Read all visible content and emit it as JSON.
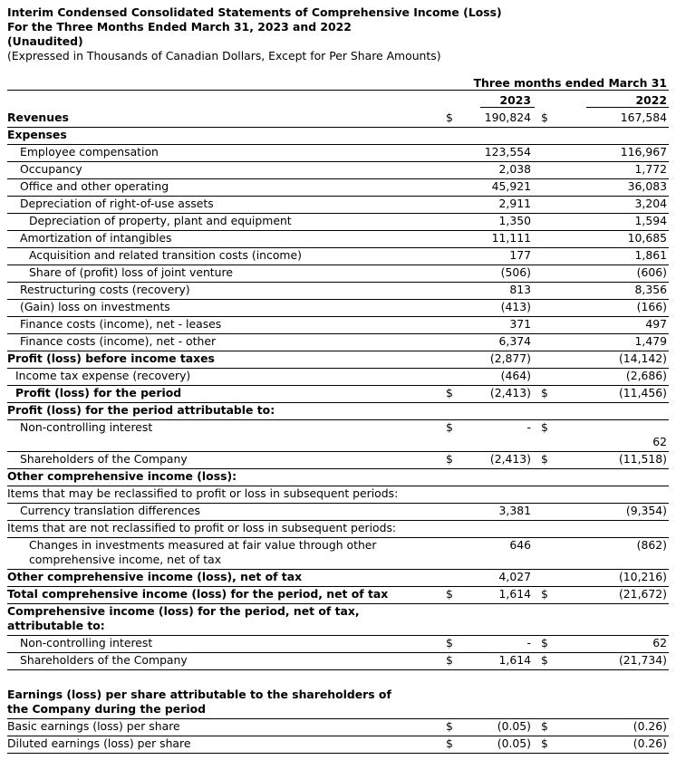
{
  "title": {
    "line1": "Interim Condensed Consolidated Statements of Comprehensive Income (Loss)",
    "line2": "For the Three Months Ended March 31, 2023 and 2022",
    "line3": "(Unaudited)",
    "line4": "(Expressed in Thousands of Canadian Dollars, Except for Per Share Amounts)"
  },
  "column_header": {
    "period": "Three months ended March 31",
    "year1": "2023",
    "year2": "2022"
  },
  "rows": [
    {
      "label": "Revenues",
      "bold": true,
      "indent": 0,
      "c1": "$",
      "v1": "190,824",
      "c2": "$",
      "v2": "167,584"
    },
    {
      "label": "Expenses",
      "bold": true,
      "indent": 0
    },
    {
      "label": "Employee compensation",
      "indent": 1,
      "v1": "123,554",
      "v2": "116,967"
    },
    {
      "label": "Occupancy",
      "indent": 1,
      "v1": "2,038",
      "v2": "1,772"
    },
    {
      "label": "Office and other operating",
      "indent": 1,
      "v1": "45,921",
      "v2": "36,083"
    },
    {
      "label": "Depreciation of right-of-use assets",
      "indent": 1,
      "v1": "2,911",
      "v2": "3,204"
    },
    {
      "label": "Depreciation of property, plant and equipment",
      "indent": 2,
      "v1": "1,350",
      "v2": "1,594"
    },
    {
      "label": "Amortization of intangibles",
      "indent": 1,
      "v1": "11,111",
      "v2": "10,685"
    },
    {
      "label": "Acquisition and related transition costs (income)",
      "indent": 2,
      "v1": "177",
      "v2": "1,861"
    },
    {
      "label": "Share of (profit) loss of joint venture",
      "indent": 2,
      "v1": "(506)",
      "v2": "(606)"
    },
    {
      "label": "Restructuring costs (recovery)",
      "indent": 1,
      "v1": "813",
      "v2": "8,356"
    },
    {
      "label": "(Gain) loss on investments",
      "indent": 1,
      "v1": "(413)",
      "v2": "(166)"
    },
    {
      "label": "Finance costs (income), net - leases",
      "indent": 1,
      "v1": "371",
      "v2": "497"
    },
    {
      "label": "Finance costs (income), net - other",
      "indent": 1,
      "v1": "6,374",
      "v2": "1,479"
    },
    {
      "label": "Profit (loss) before income taxes",
      "bold": true,
      "indent": 0,
      "v1": "(2,877)",
      "v2": "(14,142)"
    },
    {
      "label": "Income tax expense (recovery)",
      "indent": 3,
      "v1": "(464)",
      "v2": "(2,686)"
    },
    {
      "label": "Profit (loss) for the period",
      "bold": true,
      "indent": 3,
      "c1": "$",
      "v1": "(2,413)",
      "c2": "$",
      "v2": "(11,456)"
    },
    {
      "label": "Profit (loss) for the period attributable to:",
      "bold": true,
      "indent": 0
    },
    {
      "label": "Non-controlling interest",
      "indent": 1,
      "c1": "$",
      "v1": "-",
      "c2": "$"
    },
    {
      "v2": "62"
    },
    {
      "label": "Shareholders of the Company",
      "indent": 1,
      "c1": "$",
      "v1": "(2,413)",
      "c2": "$",
      "v2": "(11,518)"
    },
    {
      "label": "Other comprehensive income (loss):",
      "bold": true,
      "indent": 0
    },
    {
      "label": "Items that may be reclassified to profit or loss in subsequent periods:",
      "indent": 0
    },
    {
      "label": "Currency translation differences",
      "indent": 1,
      "v1": "3,381",
      "v2": "(9,354)"
    },
    {
      "label": "Items that are not reclassified to profit or loss in subsequent periods:",
      "indent": 0
    },
    {
      "label": "Changes in investments measured at fair value through other",
      "indent": 2,
      "v1": "646",
      "v2": "(862)"
    },
    {
      "label": "comprehensive income, net of tax",
      "indent": 2
    },
    {
      "label": "Other comprehensive income (loss), net of tax",
      "bold": true,
      "indent": 0,
      "v1": "4,027",
      "v2": "(10,216)"
    },
    {
      "label": "Total comprehensive income (loss) for the period, net of tax",
      "bold": true,
      "indent": 0,
      "c1": "$",
      "v1": "1,614",
      "c2": "$",
      "v2": "(21,672)"
    },
    {
      "label": "Comprehensive income (loss) for the period, net of tax,",
      "bold": true,
      "indent": 0
    },
    {
      "label": "attributable to:",
      "bold": true,
      "indent": 0
    },
    {
      "label": "Non-controlling interest",
      "indent": 1,
      "c1": "$",
      "v1": "-",
      "c2": "$",
      "v2": "62"
    },
    {
      "label": "Shareholders of the Company",
      "indent": 1,
      "c1": "$",
      "v1": "1,614",
      "c2": "$",
      "v2": "(21,734)"
    },
    {
      "label": "Earnings (loss) per share attributable to the shareholders of",
      "bold": true,
      "indent": 0
    },
    {
      "label": "the Company during the period",
      "bold": true,
      "indent": 0
    },
    {
      "label": "Basic earnings (loss) per share",
      "indent": 0,
      "c1": "$",
      "v1": "(0.05)",
      "c2": "$",
      "v2": "(0.26)"
    },
    {
      "label": "Diluted earnings (loss) per share",
      "indent": 0,
      "c1": "$",
      "v1": "(0.05)",
      "c2": "$",
      "v2": "(0.26)"
    }
  ]
}
